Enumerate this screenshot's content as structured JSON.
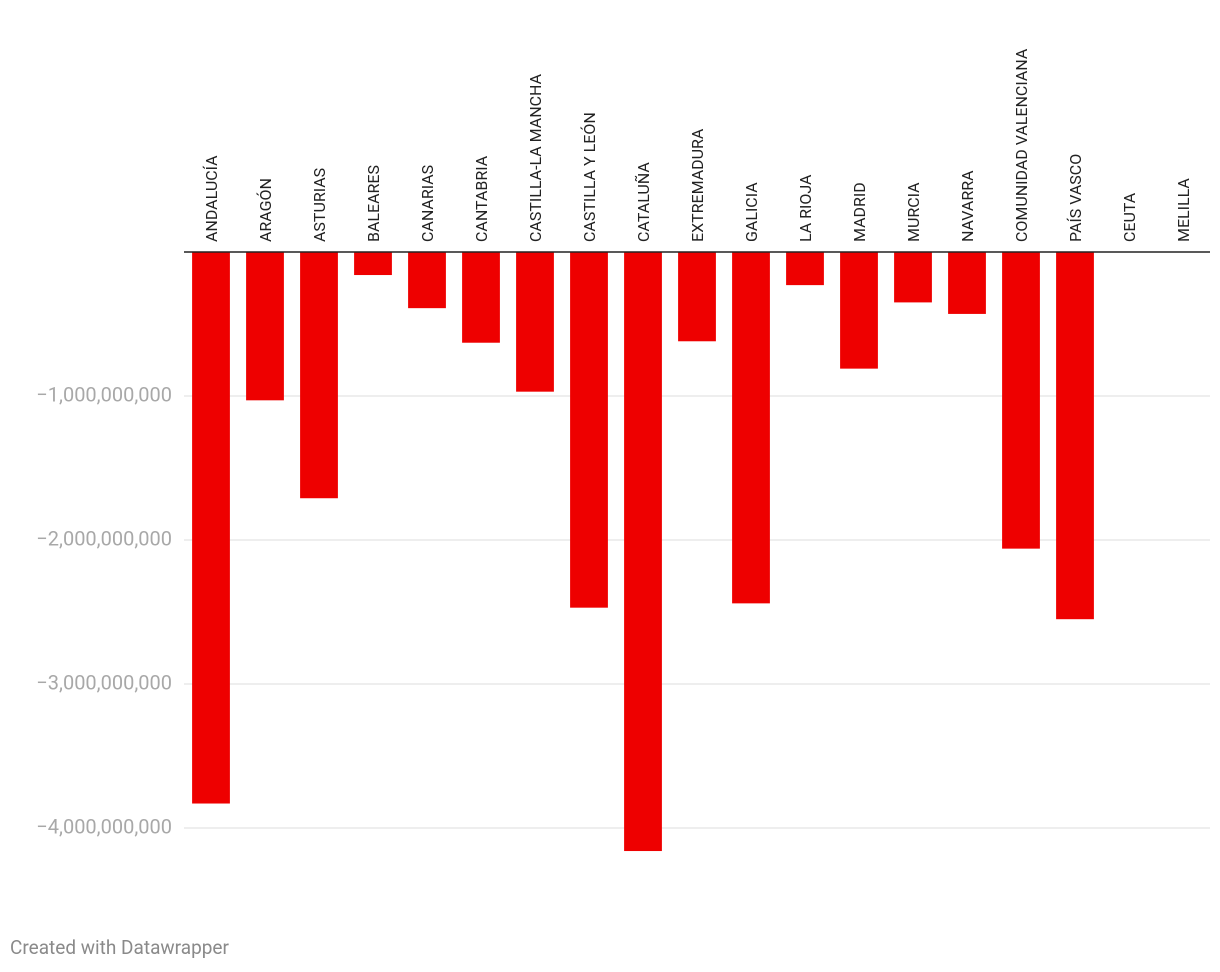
{
  "chart_data": {
    "type": "bar",
    "categories": [
      "ANDALUCÍA",
      "ARAGÓN",
      "ASTURIAS",
      "BALEARES",
      "CANARIAS",
      "CANTABRIA",
      "CASTILLA-LA MANCHA",
      "CASTILLA Y LEÓN",
      "CATALUÑA",
      "EXTREMADURA",
      "GALICIA",
      "LA RIOJA",
      "MADRID",
      "MURCIA",
      "NAVARRA",
      "COMUNIDAD VALENCIANA",
      "PAÍS VASCO",
      "CEUTA",
      "MELILLA"
    ],
    "values": [
      -3830000000,
      -1030000000,
      -1710000000,
      -160000000,
      -390000000,
      -630000000,
      -970000000,
      -2470000000,
      -4160000000,
      -620000000,
      -2440000000,
      -230000000,
      -810000000,
      -350000000,
      -430000000,
      -2060000000,
      -2550000000,
      0,
      0
    ],
    "color": "#ee0000",
    "ylim": [
      -4200000000,
      0
    ],
    "yticks": [
      {
        "value": -4000000000,
        "label": "−4,000,000,000"
      },
      {
        "value": -3000000000,
        "label": "−3,000,000,000"
      },
      {
        "value": -2000000000,
        "label": "−2,000,000,000"
      },
      {
        "value": -1000000000,
        "label": "−1,000,000,000"
      }
    ],
    "grid": true,
    "credit": "Created with Datawrapper"
  }
}
